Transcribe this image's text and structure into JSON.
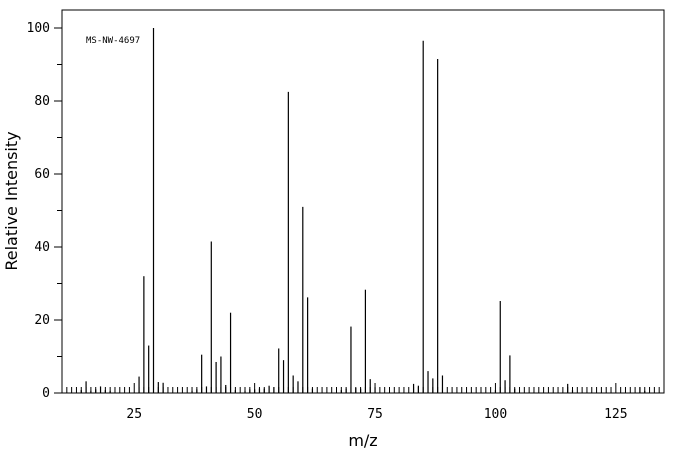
{
  "chart_data": {
    "type": "bar",
    "subtype": "mass-spectrum-stick",
    "annotation": "MS-NW-4697",
    "xlabel": "m/z",
    "ylabel": "Relative Intensity",
    "xlim": [
      10,
      135
    ],
    "ylim": [
      0,
      105
    ],
    "x_ticks": [
      25,
      50,
      75,
      100,
      125
    ],
    "y_ticks": [
      0,
      20,
      40,
      60,
      80,
      100
    ],
    "grid": false,
    "color": "#000000",
    "x": [
      14,
      15,
      16,
      17,
      18,
      19,
      20,
      26,
      27,
      28,
      29,
      30,
      31,
      37,
      38,
      39,
      40,
      41,
      42,
      43,
      44,
      45,
      46,
      48,
      49,
      50,
      51,
      52,
      53,
      54,
      55,
      56,
      57,
      58,
      59,
      60,
      61,
      62,
      68,
      69,
      70,
      71,
      72,
      73,
      74,
      75,
      83,
      84,
      85,
      86,
      87,
      88,
      89,
      100,
      101,
      102,
      103,
      104,
      115,
      116,
      130,
      131
    ],
    "y": [
      0.8,
      3.2,
      0.6,
      1.0,
      1.8,
      0.8,
      0.6,
      4.5,
      32,
      13,
      100,
      3.0,
      2.8,
      0.6,
      1.0,
      10.5,
      1.8,
      41.5,
      8.5,
      10,
      2.2,
      22,
      0.8,
      0.6,
      1.0,
      1.0,
      1.2,
      1.2,
      2.0,
      1.6,
      12.2,
      9,
      82.5,
      4.8,
      3.2,
      51,
      26.2,
      1.2,
      0.8,
      1.2,
      18.2,
      1.4,
      1.2,
      28.3,
      3.8,
      1.6,
      2.5,
      2.0,
      96.5,
      6.0,
      4.0,
      91.5,
      4.8,
      0.8,
      25.2,
      3.5,
      10.3,
      1.2,
      2.5,
      0.8,
      1.6,
      0.6
    ]
  }
}
